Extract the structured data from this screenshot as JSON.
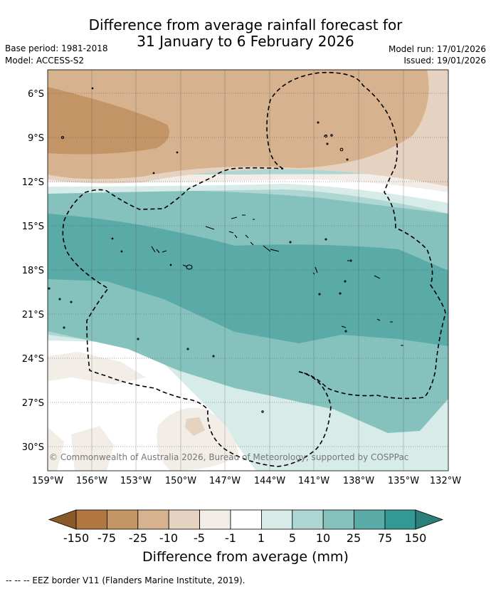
{
  "title": {
    "line1": "Difference from average rainfall forecast for",
    "line2": "31 January to 6 February 2026"
  },
  "meta": {
    "base_period": "Base period: 1981-2018",
    "model": "Model: ACCESS-S2",
    "model_run": "Model run: 17/01/2026",
    "issued": "Issued: 19/01/2026"
  },
  "map": {
    "lat_labels": [
      "6°S",
      "9°S",
      "12°S",
      "15°S",
      "18°S",
      "21°S",
      "24°S",
      "27°S",
      "30°S"
    ],
    "lon_labels": [
      "159°W",
      "156°W",
      "153°W",
      "150°W",
      "147°W",
      "144°W",
      "141°W",
      "138°W",
      "135°W",
      "132°W"
    ],
    "copyright": "© Commonwealth of Australia 2026, Bureau of Meteorology, supported by COSPPac"
  },
  "colorbar": {
    "labels": [
      "-150",
      "-75",
      "-25",
      "-10",
      "-5",
      "-1",
      "1",
      "5",
      "10",
      "25",
      "75",
      "150"
    ],
    "colors": [
      "#8b5a2b",
      "#b07840",
      "#c39466",
      "#d6b28e",
      "#e6d2c0",
      "#f2ede6",
      "#ffffff",
      "#d7ebe9",
      "#aed7d4",
      "#85c1bd",
      "#5aaaa7",
      "#339994",
      "#2b7f7a"
    ],
    "title": "Difference from average (mm)"
  },
  "footnote": "--  --  -- EEZ border V11 (Flanders Marine Institute, 2019)."
}
